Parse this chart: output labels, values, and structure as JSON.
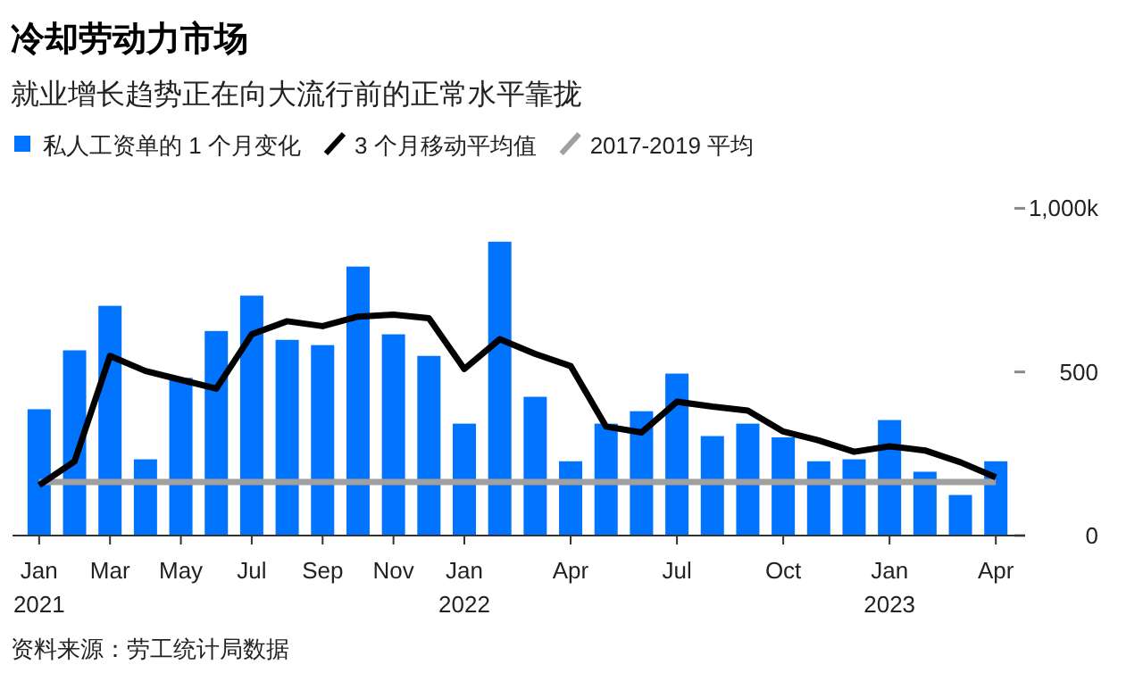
{
  "chart_data": {
    "type": "bar",
    "title": "冷却劳动力市场",
    "subtitle": "就业增长趋势正在向大流行前的正常水平靠拢",
    "categories": [
      "Jan\n2021",
      null,
      "Mar",
      null,
      "May",
      null,
      "Jul",
      null,
      "Sep",
      null,
      "Nov",
      null,
      "Jan\n2022",
      null,
      null,
      "Apr",
      null,
      null,
      "Jul",
      null,
      null,
      "Oct",
      null,
      null,
      "Jan\n2023",
      null,
      null,
      "Apr"
    ],
    "series": [
      {
        "name": "私人工资单的 1 个月变化",
        "color": "#0073ff",
        "values": [
          386,
          566,
          702,
          233,
          482,
          625,
          733,
          598,
          582,
          822,
          615,
          549,
          342,
          898,
          424,
          227,
          342,
          380,
          495,
          304,
          342,
          300,
          227,
          233,
          353,
          195,
          124,
          227
        ]
      },
      {
        "name": "3 个月移动平均值",
        "type": "line",
        "color": "#000000",
        "values": [
          154,
          227,
          549,
          503,
          476,
          449,
          615,
          655,
          640,
          669,
          675,
          664,
          509,
          600,
          555,
          518,
          333,
          315,
          409,
          394,
          382,
          318,
          291,
          256,
          273,
          260,
          224,
          178
        ]
      },
      {
        "name": "2017-2019 平均",
        "type": "line",
        "color": "#a0a0a0",
        "values": [
          164,
          164,
          164,
          164,
          164,
          164,
          164,
          164,
          164,
          164,
          164,
          164,
          164,
          164,
          164,
          164,
          164,
          164,
          164,
          164,
          164,
          164,
          164,
          164,
          164,
          164,
          164,
          164
        ]
      }
    ],
    "ylim": [
      0,
      1000
    ],
    "yticks": [
      0,
      500,
      {
        "value": 1000,
        "label": "1,000k"
      }
    ],
    "grid": false,
    "legend": "top left",
    "annotations": [
      "资料来源：劳工统计局数据"
    ]
  }
}
